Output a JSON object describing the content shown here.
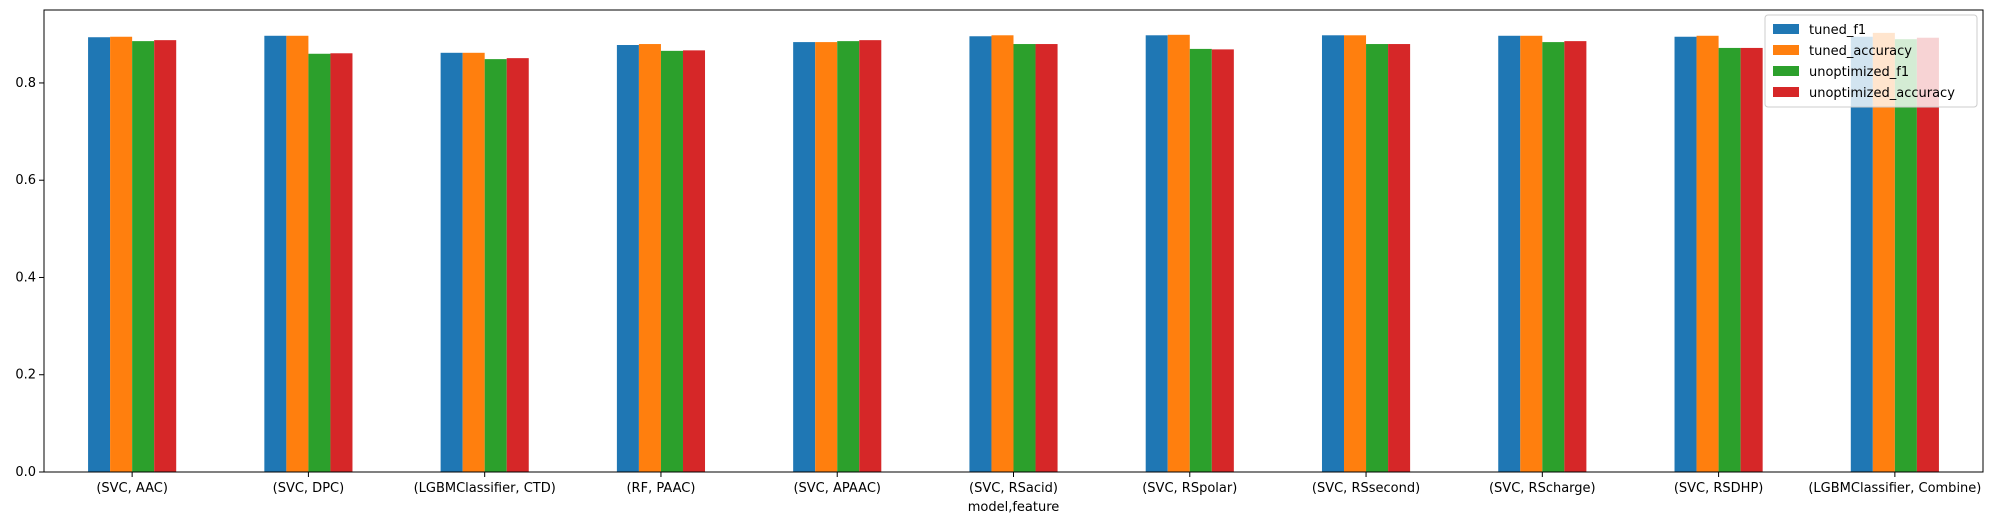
{
  "chart_data": {
    "type": "bar",
    "xlabel": "model,feature",
    "ylabel": "",
    "ylim": [
      0,
      0.95
    ],
    "yticks": [
      0.0,
      0.2,
      0.4,
      0.6,
      0.8
    ],
    "ytick_labels": [
      "0.0",
      "0.2",
      "0.4",
      "0.6",
      "0.8"
    ],
    "grid": false,
    "legend_position": "top-right",
    "categories": [
      "(SVC, AAC)",
      "(SVC, DPC)",
      "(LGBMClassifier, CTD)",
      "(RF, PAAC)",
      "(SVC, APAAC)",
      "(SVC, RSacid)",
      "(SVC, RSpolar)",
      "(SVC, RSsecond)",
      "(SVC, RScharge)",
      "(SVC, RSDHP)",
      "(LGBMClassifier, Combine)"
    ],
    "series": [
      {
        "name": "tuned_f1",
        "color": "#1f77b4",
        "values": [
          0.894,
          0.897,
          0.862,
          0.878,
          0.884,
          0.896,
          0.898,
          0.898,
          0.897,
          0.895,
          0.895
        ]
      },
      {
        "name": "tuned_accuracy",
        "color": "#ff7f0e",
        "values": [
          0.895,
          0.897,
          0.862,
          0.88,
          0.884,
          0.898,
          0.899,
          0.898,
          0.897,
          0.897,
          0.903
        ]
      },
      {
        "name": "unoptimized_f1",
        "color": "#2ca02c",
        "values": [
          0.886,
          0.86,
          0.849,
          0.866,
          0.886,
          0.88,
          0.87,
          0.88,
          0.884,
          0.872,
          0.89
        ]
      },
      {
        "name": "unoptimized_accuracy",
        "color": "#d62728",
        "values": [
          0.888,
          0.861,
          0.851,
          0.867,
          0.888,
          0.88,
          0.869,
          0.88,
          0.886,
          0.872,
          0.893
        ]
      }
    ]
  }
}
